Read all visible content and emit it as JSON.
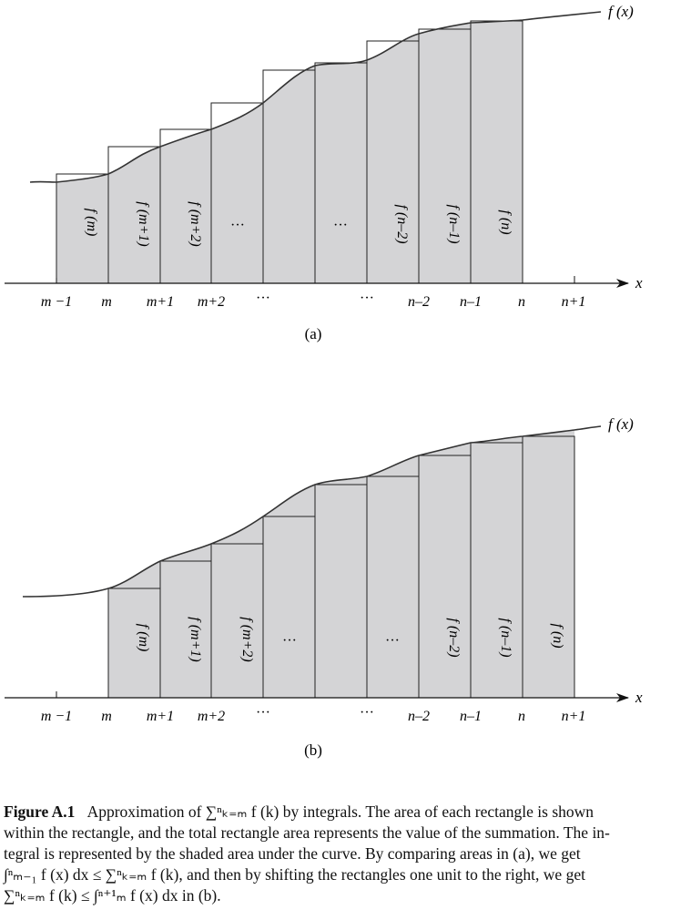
{
  "figure": {
    "curve_label": "f (x)",
    "x_axis_label": "x",
    "panels": [
      {
        "id": "a",
        "sublabel": "(a)",
        "tick_labels": [
          "m −1",
          "m",
          "m+1",
          "m+2",
          "···",
          "···",
          "n–2",
          "n–1",
          "n",
          "n+1"
        ],
        "rect_labels": [
          "f (m)",
          "f (m+1)",
          "f (m+2)",
          "···",
          "···",
          "f (n–2)",
          "f (n–1)",
          "f (n)"
        ]
      },
      {
        "id": "b",
        "sublabel": "(b)",
        "tick_labels": [
          "m −1",
          "m",
          "m+1",
          "m+2",
          "···",
          "···",
          "n–2",
          "n–1",
          "n",
          "n+1"
        ],
        "rect_labels": [
          "f (m)",
          "f (m+1)",
          "f (m+2)",
          "···",
          "···",
          "f (n–2)",
          "f (n–1)",
          "f (n)"
        ]
      }
    ]
  },
  "caption": {
    "label": "Figure A.1",
    "line1": "Approximation of ∑ⁿₖ₌ₘ f (k) by integrals.  The area of each rectangle is shown",
    "line2": "within the rectangle, and the total rectangle area represents the value of the summation.  The in-",
    "line3": "tegral is represented by the shaded area under the curve.  By comparing areas in (a), we get",
    "line4": "∫ⁿₘ₋₁ f (x) dx  ≤  ∑ⁿₖ₌ₘ f (k), and then by shifting the rectangles one unit to the right, we get",
    "line5": "∑ⁿₖ₌ₘ f (k) ≤ ∫ⁿ⁺¹ₘ f (x) dx in (b)."
  }
}
